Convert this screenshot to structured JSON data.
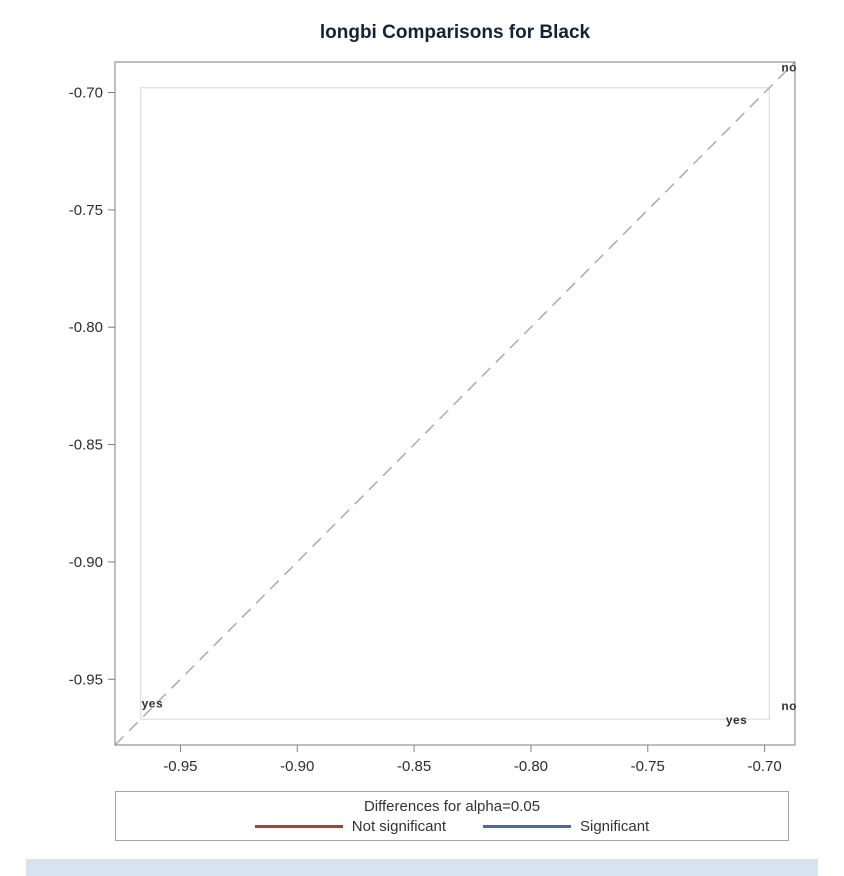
{
  "page": {
    "footer_strip_color": "#d8e3f0"
  },
  "chart_data": {
    "type": "scatter",
    "subtype": "diffogram",
    "title": "longbi Comparisons for Black",
    "xlabel": "",
    "ylabel": "",
    "x_ticks": [
      -0.95,
      -0.9,
      -0.85,
      -0.8,
      -0.75,
      -0.7
    ],
    "y_ticks": [
      -0.7,
      -0.75,
      -0.8,
      -0.85,
      -0.9,
      -0.95
    ],
    "x_range": [
      -0.978,
      -0.687
    ],
    "y_range": [
      -0.978,
      -0.687
    ],
    "grid": false,
    "reference_line": {
      "style": "dashed",
      "color": "#ababab",
      "from": [
        -0.978,
        -0.978
      ],
      "to": [
        -0.687,
        -0.687
      ]
    },
    "inner_frame": {
      "x0": -0.967,
      "y0": -0.967,
      "x1": -0.698,
      "y1": -0.698,
      "color": "#d6d6d6"
    },
    "annotations": [
      {
        "label": "no",
        "x": -0.6895,
        "y": -0.691
      },
      {
        "label": "yes",
        "x": -0.962,
        "y": -0.962
      },
      {
        "label": "yes",
        "x": -0.712,
        "y": -0.969
      },
      {
        "label": "no",
        "x": -0.6895,
        "y": -0.963
      }
    ],
    "colors": {
      "frame": "#7f7f7f",
      "inner_frame": "#d6d6d6",
      "diagonal": "#ababab",
      "tick_text": "#2e2e2e",
      "title": "#132437"
    },
    "legend": {
      "position": "bottom",
      "title": "Differences for alpha=0.05",
      "entries": [
        {
          "label": "Not significant",
          "color": "#a5433a"
        },
        {
          "label": "Significant",
          "color": "#4e66a2"
        }
      ]
    }
  }
}
